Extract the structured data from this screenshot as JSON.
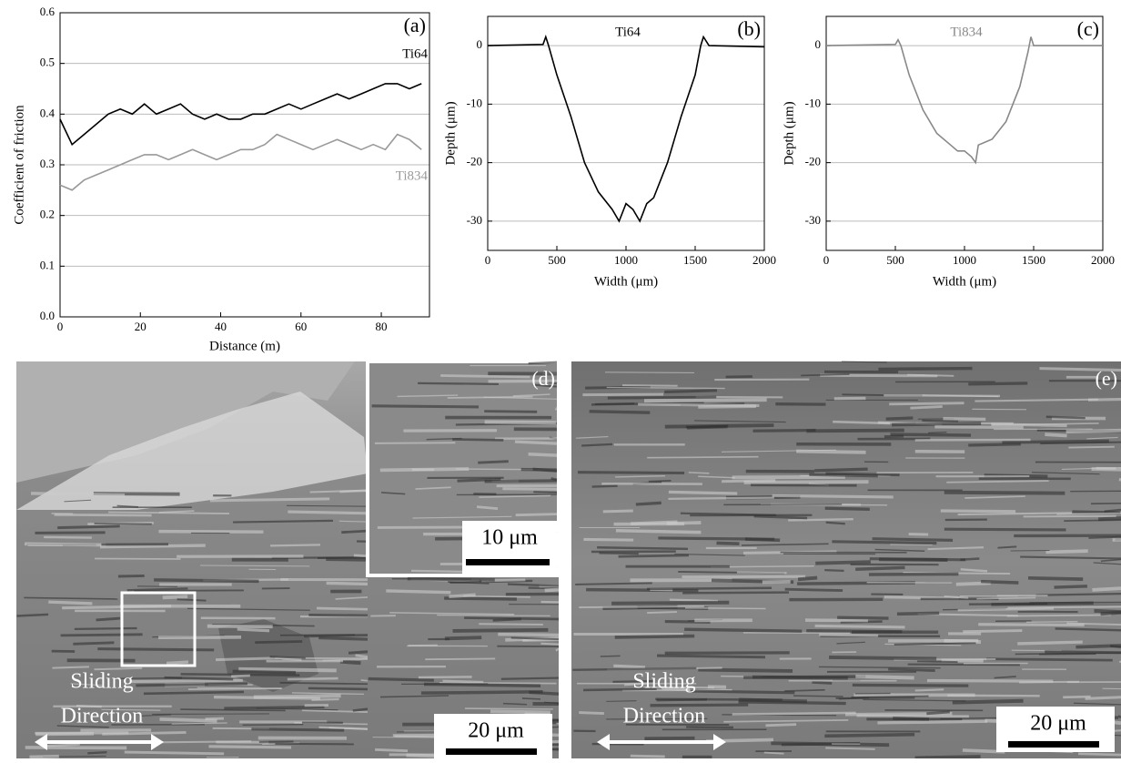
{
  "chart_data": [
    {
      "type": "line",
      "panel_label": "(a)",
      "xlabel": "Distance (m)",
      "ylabel": "Coefficient of friction",
      "xlim": [
        0,
        92
      ],
      "xticks": [
        0,
        20,
        40,
        60,
        80
      ],
      "ylim": [
        0,
        0.6
      ],
      "yticks": [
        {
          "value": 0,
          "label": "0.0"
        },
        0.1,
        0.2,
        0.3,
        0.4,
        0.5,
        0.6
      ],
      "grid": true,
      "x": [
        0,
        3,
        6,
        9,
        12,
        15,
        18,
        21,
        24,
        27,
        30,
        33,
        36,
        39,
        42,
        45,
        48,
        51,
        54,
        57,
        60,
        63,
        66,
        69,
        72,
        75,
        78,
        81,
        84,
        87,
        90
      ],
      "series": [
        {
          "name": "Ti64",
          "color": "#000000",
          "values": [
            0.39,
            0.34,
            0.36,
            0.38,
            0.4,
            0.41,
            0.4,
            0.42,
            0.4,
            0.41,
            0.42,
            0.4,
            0.39,
            0.4,
            0.39,
            0.39,
            0.4,
            0.4,
            0.41,
            0.42,
            0.41,
            0.42,
            0.43,
            0.44,
            0.43,
            0.44,
            0.45,
            0.46,
            0.46,
            0.45,
            0.46
          ]
        },
        {
          "name": "Ti834",
          "color": "#999999",
          "values": [
            0.26,
            0.25,
            0.27,
            0.28,
            0.29,
            0.3,
            0.31,
            0.32,
            0.32,
            0.31,
            0.32,
            0.33,
            0.32,
            0.31,
            0.32,
            0.33,
            0.33,
            0.34,
            0.36,
            0.35,
            0.34,
            0.33,
            0.34,
            0.35,
            0.34,
            0.33,
            0.34,
            0.33,
            0.36,
            0.35,
            0.33
          ]
        }
      ]
    },
    {
      "type": "line",
      "panel_label": "(b)",
      "xlabel": "Width (μm)",
      "ylabel": "Depth (μm)",
      "xlim": [
        0,
        2000
      ],
      "xticks": [
        0,
        500,
        1000,
        1500,
        2000
      ],
      "ylim": [
        -35,
        5
      ],
      "yticks": [
        0,
        -10,
        -20,
        -30
      ],
      "grid": true,
      "x": [
        0,
        400,
        420,
        440,
        500,
        600,
        700,
        800,
        900,
        950,
        1000,
        1050,
        1100,
        1150,
        1200,
        1300,
        1400,
        1500,
        1540,
        1560,
        1600,
        2000
      ],
      "series": [
        {
          "name": "Ti64",
          "color": "#000000",
          "values": [
            0,
            0.2,
            1.5,
            0,
            -5,
            -12,
            -20,
            -25,
            -28,
            -30,
            -27,
            -28,
            -30,
            -27,
            -26,
            -20,
            -12,
            -5,
            0,
            1.5,
            0,
            -0.2
          ]
        }
      ]
    },
    {
      "type": "line",
      "panel_label": "(c)",
      "xlabel": "Width (μm)",
      "ylabel": "Depth (μm)",
      "xlim": [
        0,
        2000
      ],
      "xticks": [
        0,
        500,
        1000,
        1500,
        2000
      ],
      "ylim": [
        -35,
        5
      ],
      "yticks": [
        0,
        -10,
        -20,
        -30
      ],
      "grid": true,
      "x": [
        0,
        500,
        520,
        540,
        600,
        700,
        800,
        900,
        950,
        1000,
        1050,
        1080,
        1100,
        1200,
        1300,
        1400,
        1460,
        1480,
        1500,
        2000
      ],
      "series": [
        {
          "name": "Ti834",
          "color": "#888888",
          "values": [
            0,
            0.2,
            1,
            0,
            -5,
            -11,
            -15,
            -17,
            -18,
            -18,
            -19,
            -20,
            -17,
            -16,
            -13,
            -7,
            -1,
            1.5,
            0,
            0
          ]
        }
      ]
    }
  ],
  "images": [
    {
      "panel_label": "(d)",
      "inset_scale": "10 μm",
      "direction": [
        "Sliding",
        "Direction"
      ],
      "scale": "20 μm"
    },
    {
      "panel_label": "(e)",
      "direction": [
        "Sliding",
        "Direction"
      ],
      "scale": "20 μm"
    }
  ]
}
